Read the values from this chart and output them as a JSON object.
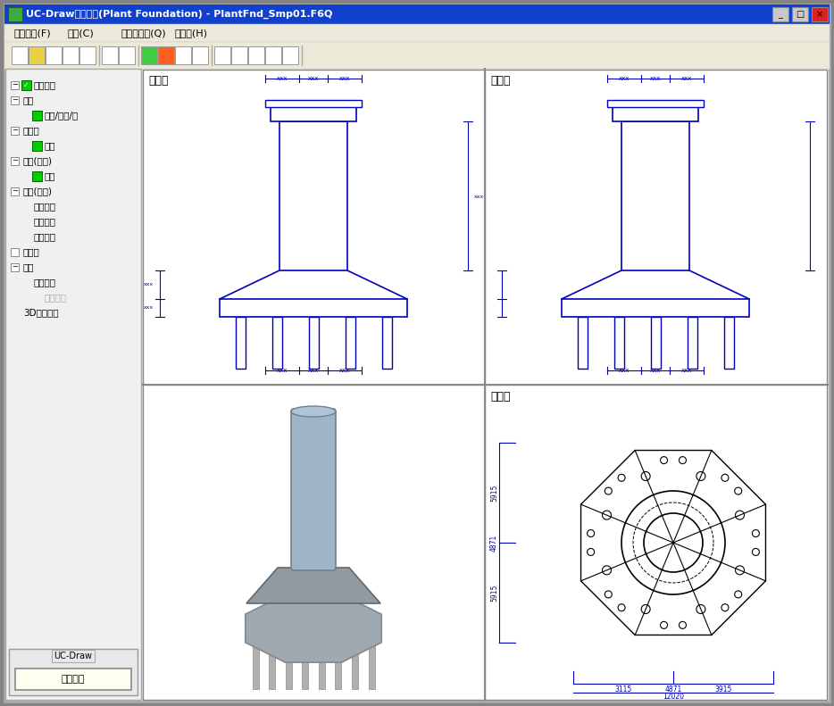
{
  "title_bar": "UC-Drawツールズ(Plant Foundation) - PlantFnd_Smp01.F6Q",
  "title_bar_bg": "#0050EE",
  "title_bar_fg": "#FFFFFF",
  "menu_items": [
    "ファイル(F)",
    "条件(C)",
    "オプション(Q)",
    "ヘルプ(H)"
  ],
  "window_bg": "#ECE9D8",
  "panel_bg": "#FFFFFF",
  "left_panel_bg": "#F5F5F5",
  "drawing_color": "#0000BB",
  "dim_color": "#0000BB",
  "bottom_label": "UC-Draw",
  "bottom_btn": "連動なし",
  "win_bg": "#848484"
}
